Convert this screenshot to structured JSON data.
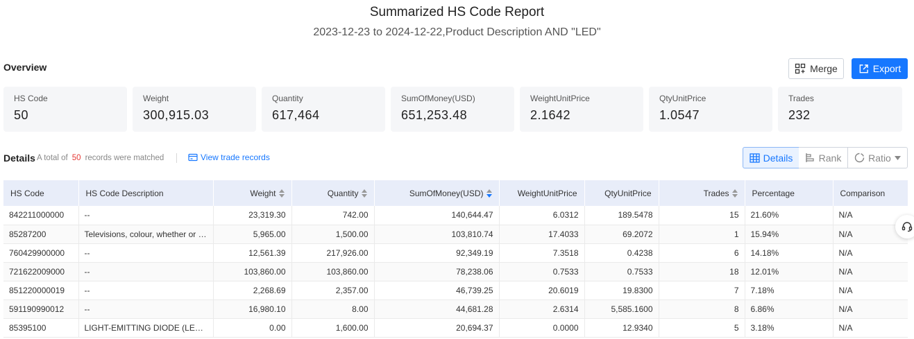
{
  "report": {
    "title": "Summarized HS Code Report",
    "subtitle": "2023-12-23 to 2024-12-22,Product Description AND \"LED\""
  },
  "overview": {
    "label": "Overview",
    "merge_label": "Merge",
    "export_label": "Export",
    "stats": [
      {
        "label": "HS Code",
        "value": "50"
      },
      {
        "label": "Weight",
        "value": "300,915.03"
      },
      {
        "label": "Quantity",
        "value": "617,464"
      },
      {
        "label": "SumOfMoney(USD)",
        "value": "651,253.48"
      },
      {
        "label": "WeightUnitPrice",
        "value": "2.1642"
      },
      {
        "label": "QtyUnitPrice",
        "value": "1.0547"
      },
      {
        "label": "Trades",
        "value": "232"
      }
    ]
  },
  "details": {
    "label": "Details",
    "summary_prefix": "A total of",
    "count": "50",
    "summary_suffix": "records were matched",
    "view_trade_records": "View trade records",
    "views": {
      "details": "Details",
      "rank": "Rank",
      "ratio": "Ratio"
    }
  },
  "table": {
    "columns": [
      "HS Code",
      "HS Code Description",
      "Weight",
      "Quantity",
      "SumOfMoney(USD)",
      "WeightUnitPrice",
      "QtyUnitPrice",
      "Trades",
      "Percentage",
      "Comparison"
    ],
    "rows": [
      [
        "842211000000",
        "--",
        "23,319.30",
        "742.00",
        "140,644.47",
        "6.0312",
        "189.5478",
        "15",
        "21.60%",
        "N/A"
      ],
      [
        "85287200",
        "Televisions, colour, whether or not...",
        "5,965.00",
        "1,500.00",
        "103,810.74",
        "17.4033",
        "69.2072",
        "1",
        "15.94%",
        "N/A"
      ],
      [
        "760429900000",
        "--",
        "12,561.39",
        "217,926.00",
        "92,349.19",
        "7.3518",
        "0.4238",
        "6",
        "14.18%",
        "N/A"
      ],
      [
        "721622009000",
        "--",
        "103,860.00",
        "103,860.00",
        "78,238.06",
        "0.7533",
        "0.7533",
        "18",
        "12.01%",
        "N/A"
      ],
      [
        "851220000019",
        "--",
        "2,268.69",
        "2,357.00",
        "46,739.25",
        "20.6019",
        "19.8300",
        "7",
        "7.18%",
        "N/A"
      ],
      [
        "591190990012",
        "--",
        "16,980.10",
        "8.00",
        "44,681.28",
        "2.6314",
        "5,585.1600",
        "8",
        "6.86%",
        "N/A"
      ],
      [
        "85395100",
        "LIGHT-EMITTING DIODE (LED) LI...",
        "0.00",
        "1,600.00",
        "20,694.37",
        "0.0000",
        "12.9340",
        "5",
        "3.18%",
        "N/A"
      ]
    ]
  },
  "colors": {
    "accent": "#1677ff",
    "count_highlight": "#e53935",
    "header_bg": "#e8edf9"
  },
  "icons": [
    "merge-icon",
    "export-icon",
    "card-icon",
    "grid-icon",
    "bar-rank-icon",
    "ratio-icon",
    "caret-down-icon",
    "sort-icon",
    "headset-icon"
  ]
}
